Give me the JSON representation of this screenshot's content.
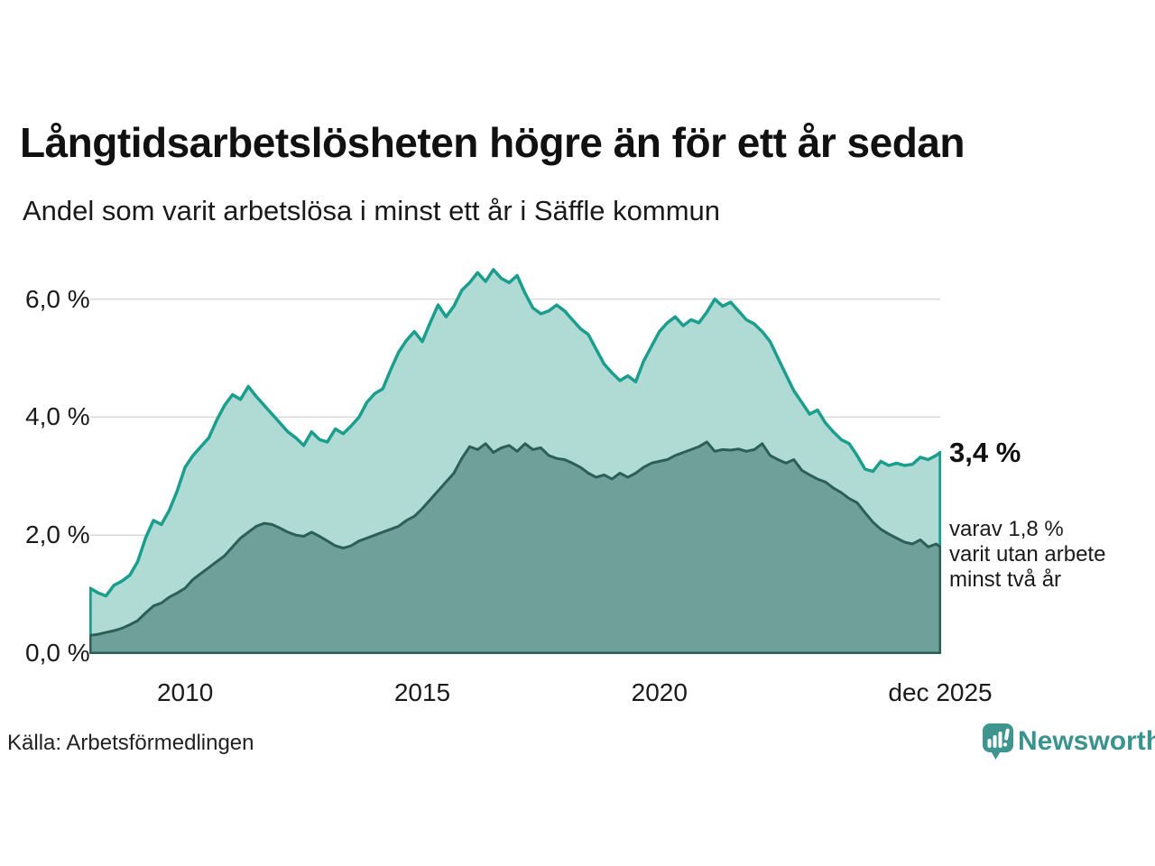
{
  "chart_data": {
    "type": "area",
    "title": "Långtidsarbetslösheten högre än för ett år sedan",
    "subtitle": "Andel som varit arbetslösa i minst ett år i Säffle kommun",
    "x_axis": {
      "tick_labels": [
        "2010",
        "2015",
        "2020",
        "dec 2025"
      ],
      "tick_years": [
        2010,
        2015,
        2020,
        2025.92
      ],
      "range": [
        2008,
        2025.92
      ],
      "grid": false
    },
    "y_axis": {
      "tick_labels": [
        "6,0 %",
        "4,0 %",
        "2,0 %",
        "0,0 %"
      ],
      "tick_values": [
        6,
        4,
        2,
        0
      ],
      "range": [
        0,
        6.65
      ],
      "grid": true,
      "grid_color": "#d8d8d8"
    },
    "x_start": 2008,
    "x_step_years": 0.1666667,
    "x_end": 2025.92,
    "series": [
      {
        "name": "Andel som varit arbetslösa minst ett år",
        "line_color": "#1b9e8e",
        "fill_color": "#b0dbd4",
        "end_value": 3.4,
        "end_label": "3,4 %",
        "values": [
          1.1,
          1.02,
          0.97,
          1.15,
          1.22,
          1.32,
          1.55,
          1.95,
          2.25,
          2.18,
          2.42,
          2.75,
          3.15,
          3.35,
          3.5,
          3.65,
          3.95,
          4.2,
          4.38,
          4.3,
          4.52,
          4.35,
          4.2,
          4.05,
          3.9,
          3.75,
          3.65,
          3.52,
          3.75,
          3.62,
          3.58,
          3.8,
          3.72,
          3.85,
          4.0,
          4.25,
          4.4,
          4.48,
          4.8,
          5.1,
          5.3,
          5.45,
          5.28,
          5.6,
          5.9,
          5.7,
          5.88,
          6.15,
          6.28,
          6.45,
          6.3,
          6.5,
          6.35,
          6.28,
          6.4,
          6.1,
          5.85,
          5.75,
          5.8,
          5.9,
          5.8,
          5.65,
          5.5,
          5.4,
          5.15,
          4.9,
          4.75,
          4.62,
          4.7,
          4.6,
          4.95,
          5.2,
          5.45,
          5.6,
          5.7,
          5.55,
          5.65,
          5.6,
          5.78,
          6.0,
          5.88,
          5.95,
          5.8,
          5.65,
          5.58,
          5.45,
          5.28,
          5.0,
          4.72,
          4.45,
          4.25,
          4.05,
          4.12,
          3.9,
          3.75,
          3.62,
          3.55,
          3.35,
          3.12,
          3.08,
          3.25,
          3.18,
          3.22,
          3.18,
          3.2,
          3.32,
          3.28,
          3.35,
          3.4
        ]
      },
      {
        "name": "Varav utan arbete minst två år",
        "line_color": "#2b5f58",
        "fill_color": "#6fa19a",
        "end_value": 1.8,
        "end_label": "1,8 %",
        "values": [
          0.3,
          0.32,
          0.35,
          0.38,
          0.42,
          0.48,
          0.55,
          0.68,
          0.8,
          0.85,
          0.95,
          1.02,
          1.1,
          1.25,
          1.35,
          1.45,
          1.55,
          1.65,
          1.8,
          1.95,
          2.05,
          2.15,
          2.2,
          2.18,
          2.12,
          2.05,
          2.0,
          1.98,
          2.05,
          1.98,
          1.9,
          1.82,
          1.78,
          1.82,
          1.9,
          1.95,
          2.0,
          2.05,
          2.1,
          2.15,
          2.25,
          2.32,
          2.45,
          2.6,
          2.75,
          2.9,
          3.05,
          3.3,
          3.5,
          3.45,
          3.55,
          3.4,
          3.48,
          3.52,
          3.42,
          3.55,
          3.45,
          3.48,
          3.35,
          3.3,
          3.28,
          3.22,
          3.15,
          3.05,
          2.98,
          3.02,
          2.95,
          3.05,
          2.98,
          3.05,
          3.15,
          3.22,
          3.25,
          3.28,
          3.35,
          3.4,
          3.45,
          3.5,
          3.58,
          3.42,
          3.45,
          3.44,
          3.46,
          3.42,
          3.45,
          3.55,
          3.35,
          3.28,
          3.22,
          3.28,
          3.1,
          3.02,
          2.95,
          2.9,
          2.8,
          2.72,
          2.62,
          2.55,
          2.38,
          2.22,
          2.1,
          2.02,
          1.95,
          1.88,
          1.85,
          1.92,
          1.8,
          1.85,
          1.8
        ]
      }
    ],
    "annotations": {
      "end_value_bold": "3,4 %",
      "note_lines": [
        "varav 1,8 %",
        "varit utan arbete",
        "minst två år"
      ]
    }
  },
  "footer": {
    "source": "Källa: Arbetsförmedlingen",
    "brand": "Newsworthy",
    "brand_color": "#3a938e"
  }
}
